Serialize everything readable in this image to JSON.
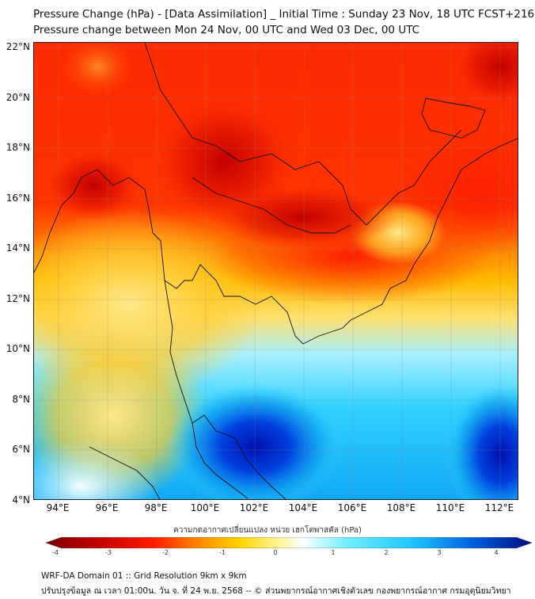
{
  "header": {
    "title_line1": "Pressure Change (hPa) - [Data Assimilation] _ Initial Time : Sunday 23 Nov, 18 UTC FCST+216",
    "title_line2": "Pressure change between Mon 24 Nov, 00 UTC and Wed 03 Dec, 00 UTC"
  },
  "map": {
    "lat_labels": [
      "22°N",
      "20°N",
      "18°N",
      "16°N",
      "14°N",
      "12°N",
      "10°N",
      "8°N",
      "6°N",
      "4°N"
    ],
    "lon_labels": [
      "94°E",
      "96°E",
      "98°E",
      "100°E",
      "102°E",
      "104°E",
      "106°E",
      "108°E",
      "110°E",
      "112°E"
    ],
    "lat_values": [
      22,
      20,
      18,
      16,
      14,
      12,
      10,
      8,
      6,
      4
    ],
    "lon_values": [
      94,
      96,
      98,
      100,
      102,
      104,
      106,
      108,
      110,
      112
    ],
    "extent": {
      "lon_min": 93.0,
      "lon_max": 112.8,
      "lat_min": 4.0,
      "lat_max": 22.2
    }
  },
  "colorbar": {
    "title": "ความกดอากาศเปลี่ยนแปลง หน่วย เฮกโตพาสคัล (hPa)",
    "tick_labels": [
      "-4",
      "-3",
      "-2",
      "-1",
      "0",
      "1",
      "2",
      "3",
      "4"
    ],
    "tick_values": [
      -4,
      -3,
      -2,
      -1,
      0,
      1,
      2,
      3,
      4
    ],
    "colors": [
      "#7a0000",
      "#d40000",
      "#ff2a00",
      "#ff8c00",
      "#ffd400",
      "#fff59a",
      "#ffffff",
      "#a8f4ff",
      "#33ddff",
      "#00a8f0",
      "#0050e0",
      "#000a80"
    ]
  },
  "footer": {
    "line1": "WRF-DA Domain 01 :: Grid Resolution 9km x 9km",
    "line2": "ปรับปรุงข้อมูล ณ เวลา 01:00น. วัน จ. ที่ 24 พ.ย. 2568 -- © ส่วนพยากรณ์อากาศเชิงตัวเลข กองพยากรณ์อากาศ กรมอุตุนิยมวิทยา"
  }
}
